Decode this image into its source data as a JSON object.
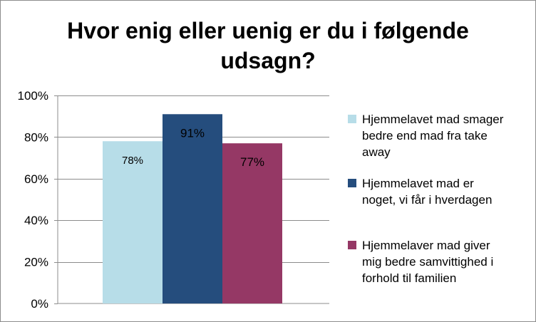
{
  "chart_data": {
    "type": "bar",
    "title_lines": [
      "Hvor enig eller uenig er du i følgende",
      "udsagn?"
    ],
    "categories": [
      ""
    ],
    "ylim": [
      0,
      100
    ],
    "yticks": [
      0,
      20,
      40,
      60,
      80,
      100
    ],
    "ytick_labels": [
      "0%",
      "20%",
      "40%",
      "60%",
      "80%",
      "100%"
    ],
    "grid": true,
    "legend_position": "right",
    "series": [
      {
        "name_lines": [
          "Hjemmelavet mad smager",
          "bedre end mad fra take",
          "away"
        ],
        "value": 78,
        "label": "78%",
        "color": "#b7dde8"
      },
      {
        "name_lines": [
          "Hjemmelavet mad er",
          "noget, vi får i hverdagen"
        ],
        "value": 91,
        "label": "91%",
        "color": "#254d7d"
      },
      {
        "name_lines": [
          "Hjemmelaver mad giver",
          "mig bedre samvittighed i",
          "forhold til familien"
        ],
        "value": 77,
        "label": "77%",
        "color": "#953865"
      }
    ]
  }
}
